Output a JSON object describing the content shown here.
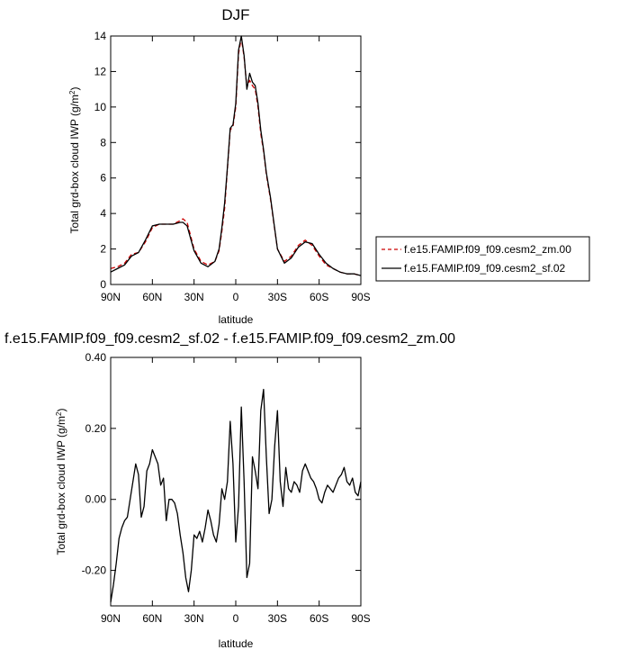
{
  "chart_data": [
    {
      "type": "line",
      "title": "DJF",
      "xlabel": "latitude",
      "ylabel": "Total grd-box cloud IWP (g/m",
      "ylabel_sup": "2",
      "ylabel_close": ")",
      "xlim": [
        90,
        -90
      ],
      "ylim": [
        0,
        14
      ],
      "xticks": [
        90,
        60,
        30,
        0,
        -30,
        -60,
        -90
      ],
      "xtick_labels": [
        "90N",
        "60N",
        "30N",
        "0",
        "30S",
        "60S",
        "90S"
      ],
      "yticks": [
        0,
        2,
        4,
        6,
        8,
        10,
        12,
        14
      ],
      "ytick_labels": [
        "0",
        "2",
        "4",
        "6",
        "8",
        "10",
        "12",
        "14"
      ],
      "grid": false,
      "legend_position": "right",
      "series": [
        {
          "name": "f.e15.FAMIP.f09_f09.cesm2_zm.00",
          "color": "#cc0000",
          "dash": "dashed",
          "x": [
            90,
            85,
            80,
            75,
            70,
            65,
            60,
            55,
            50,
            45,
            40,
            38,
            35,
            30,
            25,
            20,
            15,
            12,
            10,
            8,
            6,
            4,
            2,
            0,
            -2,
            -4,
            -6,
            -8,
            -10,
            -12,
            -14,
            -16,
            -18,
            -20,
            -22,
            -25,
            -30,
            -35,
            -40,
            -45,
            -50,
            -55,
            -60,
            -65,
            -70,
            -75,
            -80,
            -85,
            -90
          ],
          "y": [
            0.9,
            1.0,
            1.2,
            1.7,
            1.8,
            2.4,
            3.2,
            3.4,
            3.4,
            3.4,
            3.6,
            3.7,
            3.5,
            2.0,
            1.3,
            1.1,
            1.3,
            1.9,
            3.0,
            4.3,
            6.5,
            8.7,
            8.9,
            10.0,
            13.0,
            13.9,
            12.8,
            11.1,
            11.5,
            11.2,
            11.0,
            10.0,
            8.5,
            7.5,
            6.2,
            4.8,
            2.0,
            1.3,
            1.6,
            2.2,
            2.5,
            2.2,
            1.6,
            1.1,
            0.9,
            0.7,
            0.6,
            0.6,
            0.5
          ]
        },
        {
          "name": "f.e15.FAMIP.f09_f09.cesm2_sf.02",
          "color": "#000000",
          "dash": "solid",
          "x": [
            90,
            85,
            80,
            75,
            70,
            65,
            60,
            55,
            50,
            45,
            40,
            38,
            35,
            30,
            25,
            20,
            15,
            12,
            10,
            8,
            6,
            4,
            2,
            0,
            -2,
            -4,
            -6,
            -8,
            -10,
            -12,
            -14,
            -16,
            -18,
            -20,
            -22,
            -25,
            -30,
            -35,
            -40,
            -45,
            -50,
            -55,
            -60,
            -65,
            -70,
            -75,
            -80,
            -85,
            -90
          ],
          "y": [
            0.7,
            0.9,
            1.1,
            1.6,
            1.8,
            2.5,
            3.3,
            3.4,
            3.4,
            3.4,
            3.5,
            3.5,
            3.3,
            1.9,
            1.2,
            1.0,
            1.3,
            2.0,
            3.2,
            4.6,
            6.6,
            8.8,
            9.0,
            10.2,
            13.2,
            14.0,
            12.9,
            11.0,
            11.9,
            11.4,
            11.2,
            10.2,
            8.7,
            7.6,
            6.3,
            4.9,
            2.0,
            1.2,
            1.5,
            2.1,
            2.4,
            2.3,
            1.7,
            1.2,
            0.9,
            0.7,
            0.6,
            0.6,
            0.5
          ]
        }
      ]
    },
    {
      "type": "line",
      "title": "f.e15.FAMIP.f09_f09.cesm2_sf.02 - f.e15.FAMIP.f09_f09.cesm2_zm.00",
      "xlabel": "latitude",
      "ylabel": "Total grd-box cloud IWP (g/m",
      "ylabel_sup": "2",
      "ylabel_close": ")",
      "xlim": [
        90,
        -90
      ],
      "ylim": [
        -0.3,
        0.4
      ],
      "xticks": [
        90,
        60,
        30,
        0,
        -30,
        -60,
        -90
      ],
      "xtick_labels": [
        "90N",
        "60N",
        "30N",
        "0",
        "30S",
        "60S",
        "90S"
      ],
      "yticks": [
        -0.2,
        0.0,
        0.2,
        0.4
      ],
      "ytick_labels": [
        "-0.20",
        "0.00",
        "0.20",
        "0.40"
      ],
      "grid": false,
      "series": [
        {
          "color": "#000000",
          "dash": "solid",
          "x": [
            90,
            88,
            86,
            84,
            82,
            80,
            78,
            76,
            74,
            72,
            70,
            68,
            66,
            64,
            62,
            60,
            58,
            56,
            54,
            52,
            50,
            48,
            46,
            44,
            42,
            40,
            38,
            36,
            34,
            32,
            30,
            28,
            26,
            24,
            22,
            20,
            18,
            16,
            14,
            12,
            10,
            8,
            6,
            4,
            2,
            0,
            -2,
            -4,
            -6,
            -8,
            -10,
            -12,
            -14,
            -16,
            -18,
            -20,
            -22,
            -24,
            -26,
            -28,
            -30,
            -32,
            -34,
            -36,
            -38,
            -40,
            -42,
            -44,
            -46,
            -48,
            -50,
            -52,
            -54,
            -56,
            -58,
            -60,
            -62,
            -64,
            -66,
            -68,
            -70,
            -72,
            -74,
            -76,
            -78,
            -80,
            -82,
            -84,
            -86,
            -88,
            -90
          ],
          "y": [
            -0.29,
            -0.24,
            -0.18,
            -0.11,
            -0.08,
            -0.06,
            -0.05,
            0.0,
            0.05,
            0.1,
            0.07,
            -0.05,
            -0.02,
            0.08,
            0.1,
            0.14,
            0.12,
            0.1,
            0.04,
            0.06,
            -0.06,
            0.0,
            0.0,
            -0.01,
            -0.04,
            -0.1,
            -0.15,
            -0.22,
            -0.26,
            -0.2,
            -0.1,
            -0.11,
            -0.09,
            -0.12,
            -0.08,
            -0.03,
            -0.06,
            -0.1,
            -0.12,
            -0.07,
            0.03,
            0.0,
            0.05,
            0.22,
            0.1,
            -0.12,
            -0.02,
            0.26,
            0.05,
            -0.22,
            -0.18,
            0.12,
            0.08,
            0.03,
            0.25,
            0.31,
            0.12,
            -0.04,
            0.0,
            0.15,
            0.25,
            0.05,
            -0.02,
            0.09,
            0.03,
            0.02,
            0.05,
            0.04,
            0.02,
            0.08,
            0.1,
            0.08,
            0.06,
            0.05,
            0.03,
            0.0,
            -0.01,
            0.02,
            0.04,
            0.03,
            0.02,
            0.04,
            0.06,
            0.07,
            0.09,
            0.05,
            0.04,
            0.06,
            0.02,
            0.01,
            0.05
          ]
        }
      ]
    }
  ]
}
